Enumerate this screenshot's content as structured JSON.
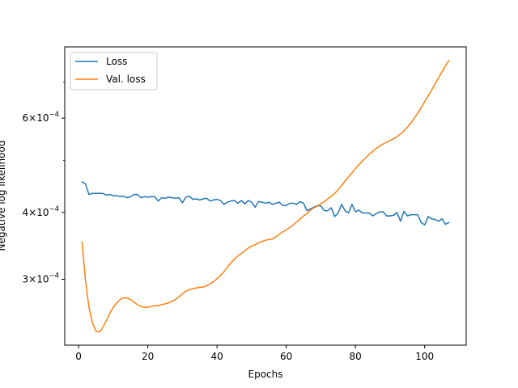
{
  "chart_data": {
    "type": "line",
    "xlabel": "Epochs",
    "ylabel": "Negative log likelihood",
    "yscale": "log",
    "xlim": [
      -4,
      112
    ],
    "ylim": [
      0.000226,
      0.000815
    ],
    "x_ticks": [
      0,
      20,
      40,
      60,
      80,
      100
    ],
    "x_tick_labels": [
      "0",
      "20",
      "40",
      "60",
      "80",
      "100"
    ],
    "y_ticks": [
      0.0003,
      0.0004,
      0.0006
    ],
    "y_tick_labels": [
      {
        "mantissa": "3",
        "times": "×",
        "base": "10",
        "exp": "−4"
      },
      {
        "mantissa": "4",
        "times": "×",
        "base": "10",
        "exp": "−4"
      },
      {
        "mantissa": "6",
        "times": "×",
        "base": "10",
        "exp": "−4"
      }
    ],
    "grid": false,
    "legend_position": "top-left",
    "series": [
      {
        "name": "Loss",
        "color": "#1f77b4",
        "x": [
          1,
          2,
          3,
          4,
          5,
          6,
          7,
          8,
          9,
          10,
          11,
          12,
          13,
          14,
          15,
          16,
          17,
          18,
          19,
          20,
          21,
          22,
          23,
          24,
          25,
          26,
          27,
          28,
          29,
          30,
          31,
          32,
          33,
          34,
          35,
          36,
          37,
          38,
          39,
          40,
          41,
          42,
          43,
          44,
          45,
          46,
          47,
          48,
          49,
          50,
          51,
          52,
          53,
          54,
          55,
          56,
          57,
          58,
          59,
          60,
          61,
          62,
          63,
          64,
          65,
          66,
          67,
          68,
          69,
          70,
          71,
          72,
          73,
          74,
          75,
          76,
          77,
          78,
          79,
          80,
          81,
          82,
          83,
          84,
          85,
          86,
          87,
          88,
          89,
          90,
          91,
          92,
          93,
          94,
          95,
          96,
          97,
          98,
          99,
          100,
          101,
          102,
          103,
          104,
          105,
          106,
          107
        ],
        "values": [
          0.000456,
          0.000452,
          0.000432,
          0.000434,
          0.000434,
          0.000434,
          0.000434,
          0.000431,
          0.000432,
          0.00043,
          0.00043,
          0.000428,
          0.000429,
          0.000426,
          0.000428,
          0.000432,
          0.000432,
          0.000426,
          0.000428,
          0.000427,
          0.000428,
          0.000428,
          0.00042,
          0.000426,
          0.000425,
          0.000427,
          0.000426,
          0.000425,
          0.000426,
          0.000417,
          0.000427,
          0.000429,
          0.000423,
          0.000424,
          0.000422,
          0.000424,
          0.000425,
          0.00042,
          0.000422,
          0.000423,
          0.000421,
          0.000414,
          0.000418,
          0.00042,
          0.000421,
          0.000416,
          0.000421,
          0.000415,
          0.000421,
          0.000418,
          0.000409,
          0.000419,
          0.000418,
          0.000416,
          0.000418,
          0.000414,
          0.000416,
          0.000418,
          0.000412,
          0.000412,
          0.000416,
          0.000416,
          0.000414,
          0.000419,
          0.000416,
          0.000403,
          0.000406,
          0.000409,
          0.000412,
          0.000411,
          0.000403,
          0.000403,
          0.000408,
          0.000393,
          0.000399,
          0.000414,
          0.000403,
          0.000399,
          0.000414,
          0.000401,
          0.000404,
          0.000399,
          0.000399,
          0.000399,
          0.000394,
          0.000398,
          0.000401,
          0.000401,
          0.000394,
          0.000394,
          0.000395,
          0.0004,
          0.000385,
          0.000402,
          0.000394,
          0.000396,
          0.000396,
          0.000396,
          0.000383,
          0.000379,
          0.000393,
          0.000389,
          0.000388,
          0.000385,
          0.000389,
          0.00038,
          0.000383
        ]
      },
      {
        "name": "Val. loss",
        "color": "#ff7f0e",
        "x": [
          1,
          2,
          3,
          4,
          5,
          6,
          7,
          8,
          9,
          10,
          11,
          12,
          13,
          14,
          15,
          16,
          17,
          18,
          19,
          20,
          21,
          22,
          23,
          24,
          25,
          26,
          27,
          28,
          29,
          30,
          31,
          32,
          33,
          34,
          35,
          36,
          37,
          38,
          39,
          40,
          41,
          42,
          43,
          44,
          45,
          46,
          47,
          48,
          49,
          50,
          51,
          52,
          53,
          54,
          55,
          56,
          57,
          58,
          59,
          60,
          61,
          62,
          63,
          64,
          65,
          66,
          67,
          68,
          69,
          70,
          71,
          72,
          73,
          74,
          75,
          76,
          77,
          78,
          79,
          80,
          81,
          82,
          83,
          84,
          85,
          86,
          87,
          88,
          89,
          90,
          91,
          92,
          93,
          94,
          95,
          96,
          97,
          98,
          99,
          100,
          101,
          102,
          103,
          104,
          105,
          106,
          107
        ],
        "values": [
          0.000352,
          0.000298,
          0.000266,
          0.000249,
          0.00024,
          0.000239,
          0.000244,
          0.000251,
          0.000259,
          0.000266,
          0.000271,
          0.000275,
          0.000277,
          0.000277,
          0.000275,
          0.000272,
          0.000269,
          0.000267,
          0.000266,
          0.000266,
          0.000267,
          0.000268,
          0.000268,
          0.000269,
          0.00027,
          0.000271,
          0.000273,
          0.000275,
          0.000278,
          0.000282,
          0.000285,
          0.000287,
          0.000288,
          0.000289,
          0.00029,
          0.00029,
          0.000292,
          0.000294,
          0.000297,
          0.000301,
          0.000305,
          0.00031,
          0.000316,
          0.000322,
          0.000327,
          0.000332,
          0.000335,
          0.000339,
          0.000343,
          0.000346,
          0.000348,
          0.000351,
          0.000353,
          0.000355,
          0.000356,
          0.000357,
          0.00036,
          0.000364,
          0.000368,
          0.000371,
          0.000375,
          0.000379,
          0.000384,
          0.000389,
          0.000394,
          0.000398,
          0.000404,
          0.000408,
          0.000411,
          0.000415,
          0.000419,
          0.000424,
          0.000429,
          0.000434,
          0.000441,
          0.000449,
          0.000458,
          0.000466,
          0.000474,
          0.000483,
          0.000491,
          0.000499,
          0.000506,
          0.000514,
          0.00052,
          0.000527,
          0.000532,
          0.000537,
          0.000541,
          0.000545,
          0.000549,
          0.000554,
          0.00056,
          0.000568,
          0.000577,
          0.000587,
          0.0006,
          0.000613,
          0.000628,
          0.000644,
          0.00066,
          0.000677,
          0.000695,
          0.000713,
          0.000732,
          0.000751,
          0.000768
        ]
      }
    ]
  }
}
